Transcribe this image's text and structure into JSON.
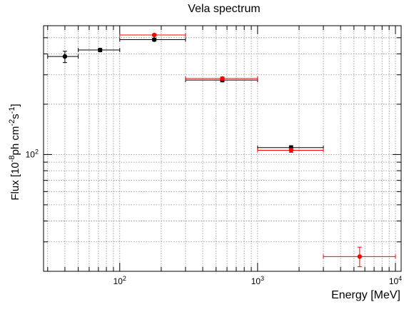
{
  "chart_data": {
    "type": "scatter",
    "title": "Vela spectrum",
    "xlabel": "Energy [MeV]",
    "ylabel": "Flux [10^-8 ph cm^-2 s^-1]",
    "x_scale": "log",
    "y_scale": "log",
    "xlim": [
      28,
      11000
    ],
    "ylim": [
      20,
      590
    ],
    "grid": true,
    "x_tick_labels": [
      {
        "value": 100,
        "label": "10",
        "exp": "2"
      },
      {
        "value": 1000,
        "label": "10",
        "exp": "3"
      },
      {
        "value": 10000,
        "label": "10",
        "exp": "4"
      }
    ],
    "y_tick_labels": [
      {
        "value": 100,
        "label": "10",
        "exp": "2"
      }
    ],
    "series": [
      {
        "color": "#000000",
        "points": [
          {
            "x": 40,
            "y": 386,
            "xerr": [
              30,
              50
            ],
            "yerr": [
              355,
              415
            ]
          },
          {
            "x": 72,
            "y": 422,
            "xerr": [
              50,
              100
            ],
            "yerr": [
              412,
              432
            ]
          },
          {
            "x": 178,
            "y": 487,
            "xerr": [
              100,
              300
            ],
            "yerr": [
              477,
              497
            ]
          },
          {
            "x": 555,
            "y": 279,
            "xerr": [
              300,
              1000
            ],
            "yerr": [
              272,
              286
            ]
          },
          {
            "x": 1750,
            "y": 110,
            "xerr": [
              1000,
              3000
            ],
            "yerr": [
              107,
              113
            ]
          }
        ]
      },
      {
        "color": "#ff0000",
        "points": [
          {
            "x": 178,
            "y": 519,
            "xerr": [
              100,
              300
            ],
            "yerr": [
              512,
              526
            ]
          },
          {
            "x": 555,
            "y": 285,
            "xerr": [
              300,
              1000
            ],
            "yerr": [
              279,
              291
            ]
          },
          {
            "x": 1750,
            "y": 106,
            "xerr": [
              1000,
              3000
            ],
            "yerr": [
              103,
              109
            ]
          },
          {
            "x": 5500,
            "y": 24.5,
            "xerr": [
              3000,
              10000
            ],
            "yerr": [
              21.3,
              27.9
            ]
          }
        ]
      }
    ]
  }
}
